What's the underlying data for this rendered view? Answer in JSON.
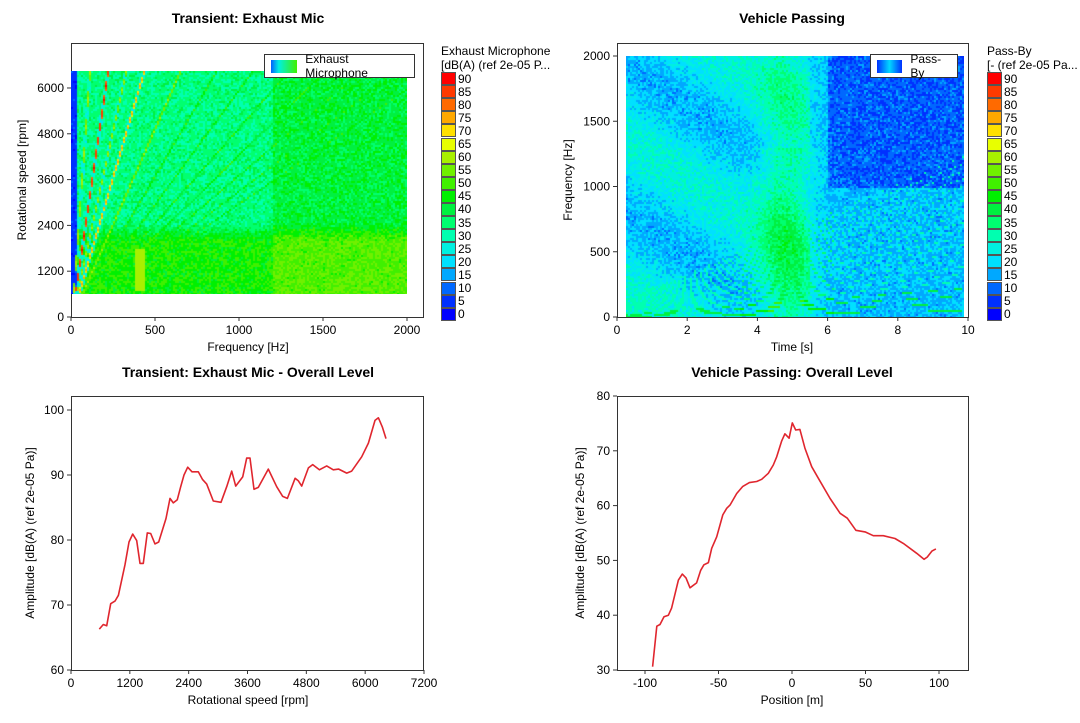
{
  "colorbar_levels": [
    90,
    85,
    80,
    75,
    70,
    65,
    60,
    55,
    50,
    45,
    40,
    35,
    30,
    25,
    20,
    15,
    10,
    5,
    0
  ],
  "colorbar_colors": [
    "#FF0000",
    "#FF3A00",
    "#FF6A00",
    "#FFA800",
    "#FFE000",
    "#E8FF00",
    "#A8F000",
    "#70F000",
    "#40F000",
    "#00F000",
    "#00F040",
    "#00FF70",
    "#00FFB0",
    "#00F0E0",
    "#00E0FF",
    "#00A8FF",
    "#0068FF",
    "#0030FF",
    "#0000FF"
  ],
  "line_color": "#E0262E",
  "chart_data": [
    {
      "type": "heatmap",
      "title": "Transient: Exhaust Mic",
      "xlabel": "Frequency [Hz]",
      "ylabel": "Rotational speed [rpm]",
      "xlim": [
        0,
        2100
      ],
      "ylim": [
        0,
        7180
      ],
      "xticks": [
        0,
        500,
        1000,
        1500,
        2000
      ],
      "yticks": [
        0,
        1200,
        2400,
        3600,
        4800,
        6000
      ],
      "data_extent": {
        "x": [
          0,
          2000
        ],
        "y": [
          600,
          6445
        ]
      },
      "legend": {
        "label": "Exhaust Microphone",
        "position": "top-right"
      },
      "colorbar": {
        "title_line1": "Exhaust Microphone",
        "title_line2": "[dB(A) (ref 2e-05 P..."
      },
      "orders": [
        1,
        2,
        3,
        4,
        6,
        8,
        10,
        12,
        14,
        16,
        18,
        20
      ],
      "strong_orders": [
        2,
        4
      ]
    },
    {
      "type": "heatmap",
      "title": "Vehicle Passing",
      "xlabel": "Time [s]",
      "ylabel": "Frequency [Hz]",
      "xlim": [
        0,
        10
      ],
      "ylim": [
        0,
        2000
      ],
      "xticks": [
        0,
        2,
        4,
        6,
        8,
        10
      ],
      "yticks": [
        0,
        500,
        1000,
        1500,
        2000
      ],
      "data_extent": {
        "x": [
          0.26,
          9.9
        ],
        "y": [
          0,
          2000
        ]
      },
      "legend": {
        "label": "Pass-By",
        "position": "top-right"
      },
      "colorbar": {
        "title_line1": "Pass-By",
        "title_line2": "[- (ref 2e-05 Pa..."
      }
    },
    {
      "type": "line",
      "title": "Transient: Exhaust Mic - Overall Level",
      "xlabel": "Rotational speed [rpm]",
      "ylabel": "Amplitude [dB(A) (ref 2e-05 Pa)]",
      "xlim": [
        0,
        7200
      ],
      "ylim": [
        60,
        100
      ],
      "xticks": [
        0,
        1200,
        2400,
        3600,
        4800,
        6000,
        7200
      ],
      "yticks": [
        60,
        70,
        80,
        90,
        100
      ],
      "x": [
        577,
        659,
        728,
        810,
        897,
        966,
        1101,
        1183,
        1258,
        1340,
        1407,
        1475,
        1556,
        1625,
        1713,
        1789,
        1938,
        2019,
        2087,
        2168,
        2237,
        2305,
        2380,
        2468,
        2597,
        2685,
        2767,
        2903,
        3060,
        3176,
        3278,
        3360,
        3502,
        3584,
        3652,
        3733,
        3821,
        4025,
        4195,
        4318,
        4413,
        4570,
        4638,
        4706,
        4842,
        4930,
        5066,
        5215,
        5351,
        5460,
        5623,
        5725,
        5929,
        6065,
        6201,
        6269,
        6350,
        6425
      ],
      "y": [
        66.3,
        67.0,
        66.8,
        70.2,
        70.6,
        71.5,
        76.2,
        79.7,
        80.9,
        79.9,
        76.4,
        76.4,
        81.1,
        81.0,
        79.4,
        79.7,
        83.3,
        86.4,
        85.7,
        86.2,
        88.2,
        90.0,
        91.2,
        90.5,
        90.5,
        89.3,
        88.6,
        86.0,
        85.8,
        88.2,
        90.6,
        88.3,
        89.7,
        92.6,
        92.6,
        87.8,
        88.1,
        90.9,
        88.2,
        86.7,
        86.4,
        89.5,
        89.1,
        88.3,
        91.1,
        91.6,
        90.8,
        91.4,
        90.8,
        90.9,
        90.3,
        90.6,
        92.8,
        94.9,
        98.4,
        98.8,
        97.4,
        95.6
      ]
    },
    {
      "type": "line",
      "title": "Vehicle Passing: Overall Level",
      "xlabel": "Position [m]",
      "ylabel": "Amplitude [dB(A) (ref 2e-05 Pa)]",
      "xlim": [
        -119,
        120
      ],
      "ylim": [
        30,
        80
      ],
      "xticks": [
        -100,
        -50,
        0,
        50,
        100
      ],
      "yticks": [
        30,
        40,
        50,
        60,
        70,
        80
      ],
      "x": [
        -94.8,
        -92,
        -89.8,
        -87.1,
        -84.1,
        -81.9,
        -77.3,
        -74.6,
        -72.1,
        -69.4,
        -64.9,
        -62.1,
        -59.9,
        -56.9,
        -54.6,
        -51.2,
        -47.1,
        -44.4,
        -42.2,
        -37.6,
        -33.5,
        -29.0,
        -24.0,
        -20.6,
        -16.1,
        -12.7,
        -10.4,
        -7.0,
        -4.8,
        -2.0,
        0.2,
        2.5,
        5.4,
        8.8,
        13.4,
        17.9,
        25.9,
        32.7,
        37.6,
        43.5,
        49.7,
        55.3,
        62.1,
        70.1,
        75.7,
        84.8,
        89.8,
        92.0,
        95.2,
        97.9
      ],
      "y": [
        30.6,
        38.0,
        38.3,
        39.7,
        40.0,
        41.3,
        46.4,
        47.5,
        46.8,
        45.0,
        45.9,
        48.2,
        49.2,
        49.6,
        52.2,
        54.3,
        58.3,
        59.5,
        60.1,
        62.2,
        63.5,
        64.2,
        64.4,
        64.8,
        65.9,
        67.4,
        68.9,
        71.8,
        73.1,
        72.3,
        75.1,
        73.8,
        73.9,
        70.5,
        67.1,
        65.0,
        61.3,
        58.6,
        57.7,
        55.5,
        55.2,
        54.5,
        54.5,
        54.0,
        53.1,
        51.3,
        50.2,
        50.6,
        51.7,
        52.1
      ]
    }
  ]
}
